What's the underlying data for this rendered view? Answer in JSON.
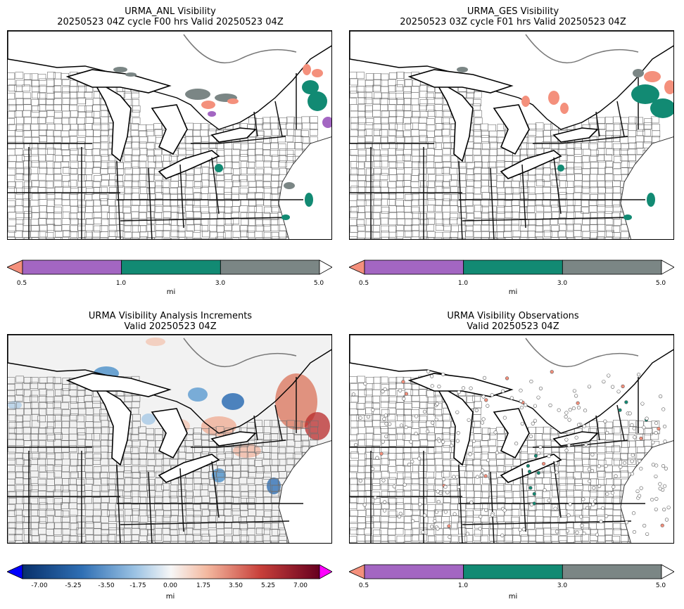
{
  "panels": [
    {
      "title_line1": "URMA_ANL Visibility",
      "title_line2": "20250523 04Z cycle F00 hrs Valid 20250523 04Z",
      "colorbar": {
        "ticks": [
          "0.5",
          "1.0",
          "3.0",
          "5.0"
        ],
        "unit": "mi",
        "colors": [
          "#f4907c",
          "#a366c2",
          "#128a73",
          "#7b8685",
          "#ffffff"
        ]
      }
    },
    {
      "title_line1": "URMA_GES Visibility",
      "title_line2": "20250523 03Z cycle F01 hrs Valid 20250523 04Z",
      "colorbar": {
        "ticks": [
          "0.5",
          "1.0",
          "3.0",
          "5.0"
        ],
        "unit": "mi",
        "colors": [
          "#f4907c",
          "#a366c2",
          "#128a73",
          "#7b8685",
          "#ffffff"
        ]
      }
    },
    {
      "title_line1": "URMA Visibility Analysis Increments",
      "title_line2": "Valid 20250523 04Z",
      "colorbar": {
        "ticks": [
          "-7.00",
          "-5.25",
          "-3.50",
          "-1.75",
          "0.00",
          "1.75",
          "3.50",
          "5.25",
          "7.00"
        ],
        "unit": "mi",
        "extend_low_color": "#0000ff",
        "extend_high_color": "#ff00ff"
      }
    },
    {
      "title_line1": "URMA Visibility Observations",
      "title_line2": "Valid 20250523 04Z",
      "colorbar": {
        "ticks": [
          "0.5",
          "1.0",
          "3.0",
          "5.0"
        ],
        "unit": "mi",
        "colors": [
          "#f4907c",
          "#a366c2",
          "#128a73",
          "#7b8685",
          "#ffffff"
        ]
      }
    }
  ]
}
